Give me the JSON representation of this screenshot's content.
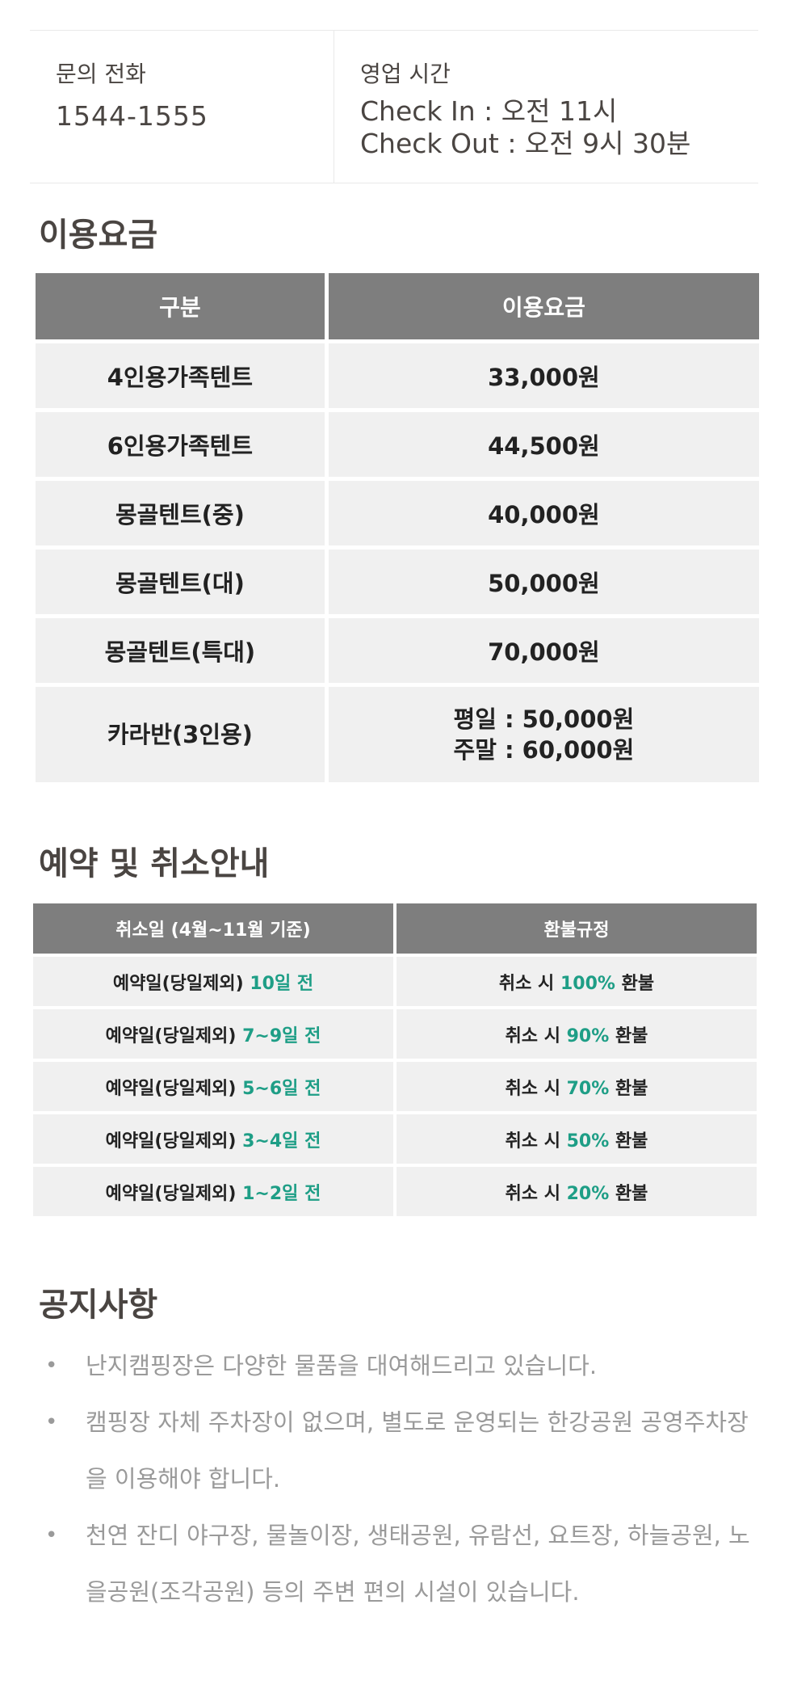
{
  "contact": {
    "phone_label": "문의 전화",
    "phone": "1544-1555",
    "hours_label": "영업 시간",
    "check_in": "Check In : 오전 11시",
    "check_out": "Check Out : 오전 9시 30분"
  },
  "pricing": {
    "title": "이용요금",
    "headers": [
      "구분",
      "이용요금"
    ],
    "rows": [
      {
        "type": "4인용가족텐트",
        "price": "33,000원"
      },
      {
        "type": "6인용가족텐트",
        "price": "44,500원"
      },
      {
        "type": "몽골텐트(중)",
        "price": "40,000원"
      },
      {
        "type": "몽골텐트(대)",
        "price": "50,000원"
      },
      {
        "type": "몽골텐트(특대)",
        "price": "70,000원"
      }
    ],
    "caravan": {
      "type": "카라반(3인용)",
      "weekday": "평일 : 50,000원",
      "weekend": "주말 : 60,000원"
    }
  },
  "refund": {
    "title": "예약 및 취소안내",
    "headers": [
      "취소일 (4월~11월 기준)",
      "환불규정"
    ],
    "rows": [
      {
        "prefix": "예약일(당일제외) ",
        "days": "10일 전",
        "pre": "취소 시 ",
        "percent": "100%",
        "post": " 환불"
      },
      {
        "prefix": "예약일(당일제외) ",
        "days": "7~9일 전",
        "pre": "취소 시 ",
        "percent": "90%",
        "post": " 환불"
      },
      {
        "prefix": "예약일(당일제외) ",
        "days": "5~6일 전",
        "pre": "취소 시 ",
        "percent": "70%",
        "post": " 환불"
      },
      {
        "prefix": "예약일(당일제외) ",
        "days": "3~4일 전",
        "pre": "취소 시 ",
        "percent": "50%",
        "post": " 환불"
      },
      {
        "prefix": "예약일(당일제외) ",
        "days": "1~2일 전",
        "pre": "취소 시 ",
        "percent": "20%",
        "post": " 환불"
      }
    ],
    "accent_color": "#1e9e86"
  },
  "notice": {
    "title": "공지사항",
    "bullet": "•",
    "items": [
      "난지캠핑장은 다양한 물품을 대여해드리고 있습니다.",
      "캠핑장 자체 주차장이 없으며, 별도로 운영되는 한강공원 공영주차장을 이용해야 합니다.",
      "천연 잔디 야구장, 물놀이장, 생태공원, 유람선, 요트장, 하늘공원, 노을공원(조각공원) 등의 주변 편의 시설이 있습니다."
    ]
  }
}
